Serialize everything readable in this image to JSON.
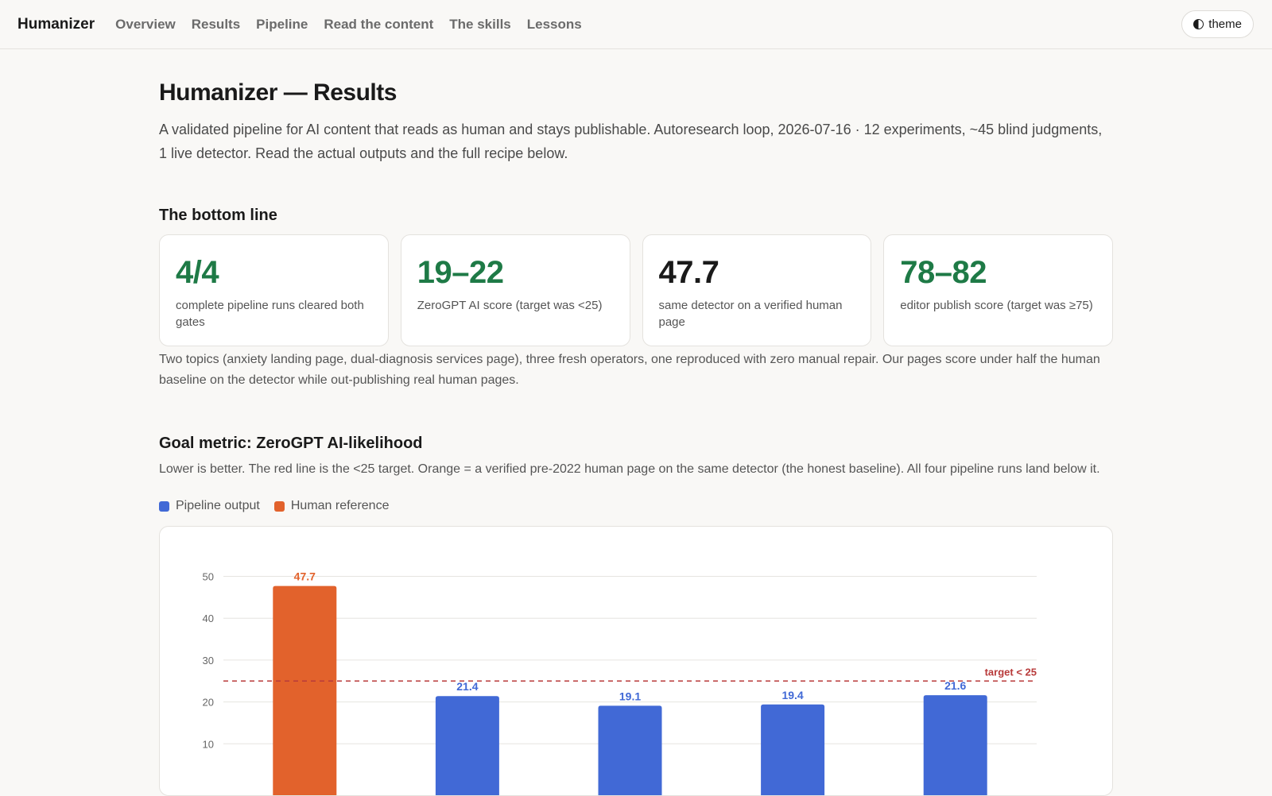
{
  "nav": {
    "brand": "Humanizer",
    "links": [
      "Overview",
      "Results",
      "Pipeline",
      "Read the content",
      "The skills",
      "Lessons"
    ],
    "theme_label": "theme"
  },
  "page": {
    "title": "Humanizer — Results",
    "lead": "A validated pipeline for AI content that reads as human and stays publishable. Autoresearch loop, 2026-07-16 · 12 experiments, ~45 blind judgments, 1 live detector. Read the actual outputs and the full recipe below."
  },
  "bottom_line": {
    "title": "The bottom line",
    "cards": [
      {
        "value": "4/4",
        "label": "complete pipeline runs cleared both gates",
        "tone": "green"
      },
      {
        "value": "19–22",
        "label": "ZeroGPT AI score (target was <25)",
        "tone": "green"
      },
      {
        "value": "47.7",
        "label": "same detector on a verified human page",
        "tone": "dark"
      },
      {
        "value": "78–82",
        "label": "editor publish score (target was ≥75)",
        "tone": "green"
      }
    ],
    "paragraph": "Two topics (anxiety landing page, dual-diagnosis services page), three fresh operators, one reproduced with zero manual repair. Our pages score under half the human baseline on the detector while out-publishing real human pages."
  },
  "goal_metric": {
    "title": "Goal metric: ZeroGPT AI-likelihood",
    "paragraph": "Lower is better. The red line is the <25 target. Orange = a verified pre-2022 human page on the same detector (the honest baseline). All four pipeline runs land below it.",
    "legend": [
      {
        "name": "Pipeline output",
        "color": "#4169d6"
      },
      {
        "name": "Human reference",
        "color": "#e2622c"
      }
    ]
  },
  "colors": {
    "pipeline": "#4169d6",
    "human": "#e2622c",
    "target": "#b83a3a",
    "accent_green": "#1e7a46"
  },
  "chart_data": {
    "type": "bar",
    "values": [
      47.7,
      21.4,
      19.1,
      19.4,
      21.6
    ],
    "value_labels": [
      "47.7",
      "21.4",
      "19.1",
      "19.4",
      "21.6"
    ],
    "groups": [
      "human",
      "pipeline",
      "pipeline",
      "pipeline",
      "pipeline"
    ],
    "yticks": [
      "10",
      "20",
      "30",
      "40",
      "50"
    ],
    "ylim": [
      0,
      50
    ],
    "target": 25,
    "target_label": "target < 25",
    "grid": true
  }
}
